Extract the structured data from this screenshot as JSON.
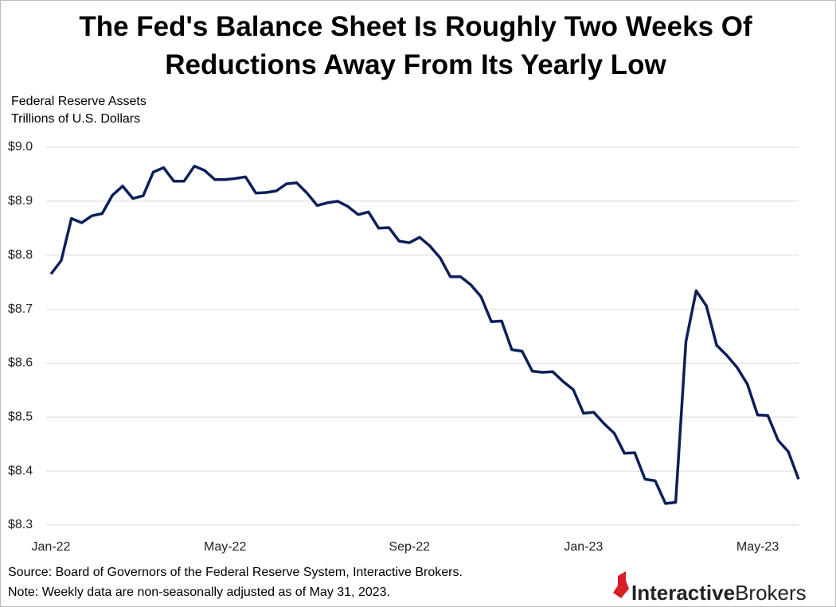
{
  "chart_data": {
    "type": "line",
    "title_lines": [
      "The Fed's Balance Sheet Is Roughly Two Weeks Of",
      "Reductions Away From Its Yearly Low"
    ],
    "y_axis_label_lines": [
      "Federal Reserve Assets",
      "Trillions of U.S. Dollars"
    ],
    "source": "Source: Board of Governors of the Federal Reserve System, Interactive Brokers.",
    "note": "Note: Weekly data are non-seasonally adjusted as of May 31, 2023.",
    "logo_parts": [
      "Interactive",
      "Brokers"
    ],
    "categories": [
      "Jan-22",
      null,
      null,
      null,
      null,
      null,
      null,
      null,
      null,
      null,
      null,
      null,
      null,
      null,
      null,
      null,
      null,
      "May-22",
      null,
      null,
      null,
      null,
      null,
      null,
      null,
      null,
      null,
      null,
      null,
      null,
      null,
      null,
      null,
      null,
      null,
      "Sep-22",
      null,
      null,
      null,
      null,
      null,
      null,
      null,
      null,
      null,
      null,
      null,
      null,
      null,
      null,
      null,
      null,
      "Jan-23",
      null,
      null,
      null,
      null,
      null,
      null,
      null,
      null,
      null,
      null,
      null,
      null,
      null,
      null,
      null,
      null,
      "May-23",
      null,
      null,
      null,
      null
    ],
    "series": [
      {
        "name": "Federal Reserve Assets",
        "color": "#0c1f5a",
        "values": [
          8.765,
          8.79,
          8.868,
          8.86,
          8.873,
          8.877,
          8.911,
          8.928,
          8.905,
          8.91,
          8.954,
          8.962,
          8.937,
          8.937,
          8.965,
          8.957,
          8.94,
          8.94,
          8.942,
          8.945,
          8.915,
          8.916,
          8.919,
          8.932,
          8.934,
          8.915,
          8.892,
          8.897,
          8.9,
          8.89,
          8.875,
          8.88,
          8.85,
          8.851,
          8.826,
          8.823,
          8.833,
          8.817,
          8.795,
          8.76,
          8.76,
          8.745,
          8.723,
          8.677,
          8.678,
          8.625,
          8.622,
          8.585,
          8.583,
          8.584,
          8.566,
          8.551,
          8.507,
          8.509,
          8.488,
          8.47,
          8.433,
          8.434,
          8.385,
          8.382,
          8.34,
          8.342,
          8.64,
          8.734,
          8.706,
          8.633,
          8.614,
          8.592,
          8.561,
          8.504,
          8.503,
          8.457,
          8.436,
          8.385
        ]
      }
    ],
    "ylim": [
      8.3,
      9.0
    ],
    "yticks": [
      {
        "value": 8.3,
        "label": "$8.3"
      },
      {
        "value": 8.4,
        "label": "$8.4"
      },
      {
        "value": 8.5,
        "label": "$8.5"
      },
      {
        "value": 8.6,
        "label": "$8.6"
      },
      {
        "value": 8.7,
        "label": "$8.7"
      },
      {
        "value": 8.8,
        "label": "$8.8"
      },
      {
        "value": 8.9,
        "label": "$8.9"
      },
      {
        "value": 9.0,
        "label": "$9.0"
      }
    ],
    "grid": true
  }
}
